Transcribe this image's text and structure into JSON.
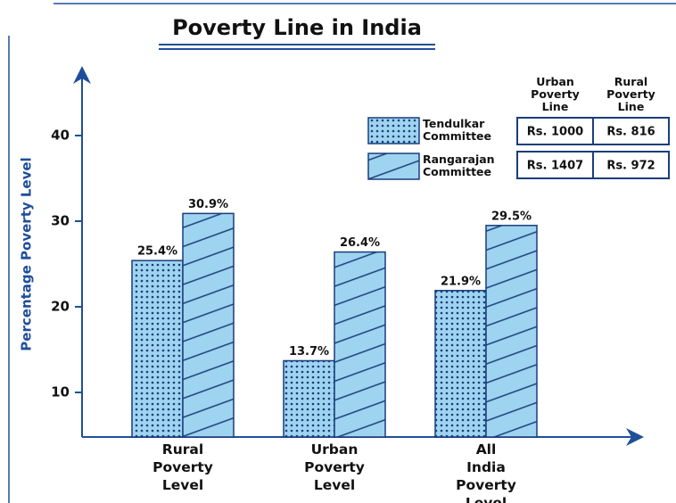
{
  "chart_data": {
    "type": "bar",
    "title": "Poverty Line in India",
    "y_label": "Percentage Poverty Level",
    "categories": [
      "Rural Poverty Level",
      "Urban Poverty Level",
      "All India Poverty Level"
    ],
    "series": [
      {
        "name": "Tendulkar Committee",
        "color": "#9fd4f0",
        "pattern": "dots",
        "values": [
          25.4,
          13.7,
          21.9
        ],
        "value_labels": [
          "25.4%",
          "13.7%",
          "21.9%"
        ]
      },
      {
        "name": "Rangarajan Committee",
        "color": "#9fd4f0",
        "pattern": "hatch",
        "values": [
          30.9,
          26.4,
          29.5
        ],
        "value_labels": [
          "30.9%",
          "26.4%",
          "29.5%"
        ]
      }
    ],
    "ylim": [
      5,
      45
    ],
    "yticks": [
      10,
      20,
      30,
      40
    ],
    "legend_table": {
      "columns": [
        "Urban Poverty Line",
        "Rural Poverty Line"
      ],
      "rows": [
        [
          "Rs. 1000",
          "Rs. 816"
        ],
        [
          "Rs. 1407",
          "Rs. 972"
        ]
      ]
    }
  }
}
